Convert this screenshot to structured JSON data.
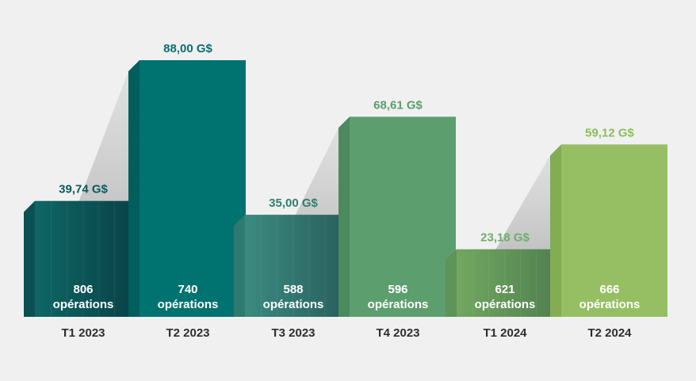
{
  "chart_data": {
    "type": "bar",
    "categories": [
      "T1 2023",
      "T2 2023",
      "T3 2023",
      "T4 2023",
      "T1 2024",
      "T2 2024"
    ],
    "values": [
      39.74,
      88.0,
      35.0,
      68.61,
      23.18,
      59.12
    ],
    "value_labels": [
      "39,74 G$",
      "88,00 G$",
      "35,00 G$",
      "68,61 G$",
      "23,18 G$",
      "59,12 G$"
    ],
    "operations": [
      806,
      740,
      588,
      596,
      621,
      666
    ],
    "operations_unit": "opérations",
    "title": "",
    "xlabel": "",
    "ylabel": "",
    "ylim": [
      0,
      88
    ],
    "grid": false,
    "colors": {
      "pairs": [
        "#0e6b6a",
        "#3f9a7c",
        "#8cc063"
      ],
      "value_label_colors": [
        "#0b5a5b",
        "#0b6f70",
        "#2f7f6c",
        "#5a9e6d",
        "#6faf6a",
        "#8cbd5b"
      ],
      "background": "#f0f0f1"
    }
  }
}
